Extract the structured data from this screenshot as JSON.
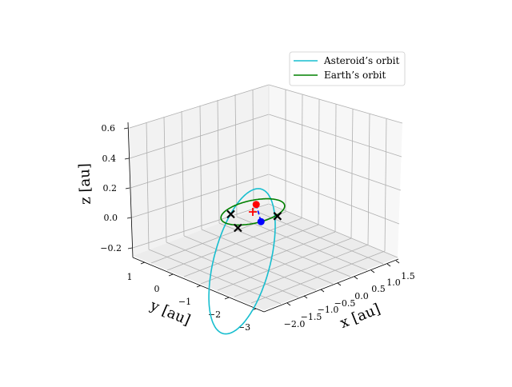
{
  "chart_data": {
    "type": "line3d",
    "title": "",
    "xlabel": "x [au]",
    "ylabel": "y [au]",
    "zlabel": "z [au]",
    "xlim": [
      -2.5,
      1.75
    ],
    "ylim": [
      -3.3,
      1.3
    ],
    "zlim": [
      -0.25,
      0.65
    ],
    "xticks": [
      "−2.0",
      "−1.5",
      "−1.0",
      "−0.5",
      "0.0",
      "0.5",
      "1.0",
      "1.5"
    ],
    "yticks": [
      "1",
      "0",
      "−1",
      "−2",
      "−3"
    ],
    "zticks": [
      "0.6",
      "0.4",
      "0.2",
      "0.0",
      "−0.2"
    ],
    "grid": true,
    "legend_position": "top-right",
    "series": [
      {
        "name": "Asteroid’s orbit",
        "color": "#17becf",
        "orbit": {
          "a": 1.35,
          "e": 0.68,
          "inclination_deg": 16,
          "node_deg": 35,
          "perihelion_arg_deg": 90
        }
      },
      {
        "name": "Earth’s orbit",
        "color": "#008000",
        "orbit": {
          "a": 1.0,
          "e": 0.0
        }
      }
    ],
    "markers": [
      {
        "label": "sun",
        "symbol": "plus",
        "color": "#ff0000",
        "x": 0.0,
        "y": 0.0,
        "z": 0.0
      },
      {
        "label": "asteroid-position",
        "symbol": "dot",
        "color": "#ff0000",
        "x": -0.43,
        "y": 0.4,
        "z": 0.0
      },
      {
        "label": "earth-position",
        "symbol": "dot",
        "color": "#0000ff",
        "x": 0.95,
        "y": -0.3,
        "z": 0.0
      },
      {
        "label": "crossing-1",
        "symbol": "x",
        "color": "#000000",
        "x": -0.5,
        "y": -0.5,
        "z": 0.0
      },
      {
        "label": "crossing-2",
        "symbol": "x",
        "color": "#000000",
        "x": 0.7,
        "y": -1.0,
        "z": 0.0
      },
      {
        "label": "crossing-3",
        "symbol": "x",
        "color": "#000000",
        "x": 1.05,
        "y": 0.25,
        "z": 0.0
      }
    ],
    "connector": {
      "style": "dashed",
      "color": "#0000ff",
      "from": "asteroid-position",
      "to": "earth-position"
    }
  }
}
